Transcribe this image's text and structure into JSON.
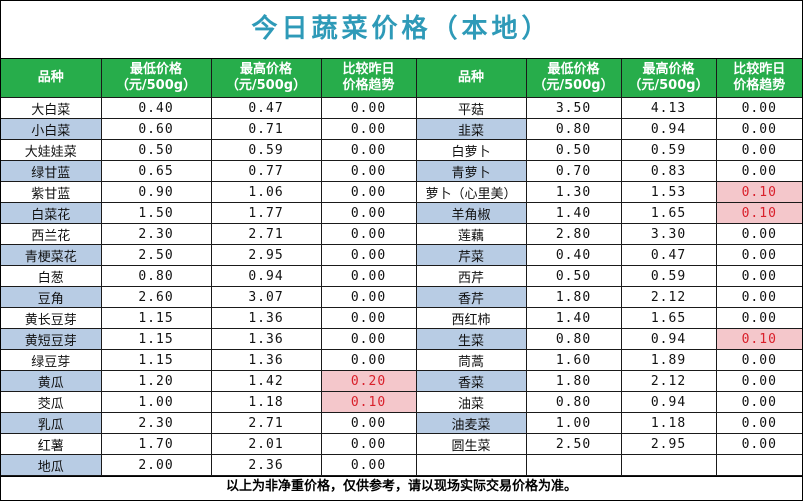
{
  "title": "今日蔬菜价格（本地）",
  "headers": {
    "name": "品种",
    "min_price": "最低价格（元/500g）",
    "min_price_l1": "最低价格",
    "min_price_l2": "（元/500g）",
    "max_price_l1": "最高价格",
    "max_price_l2": "（元/500g）",
    "trend_l1": "比较昨日",
    "trend_l2": "价格趋势"
  },
  "colors": {
    "title": "#2e9ab8",
    "header_bg": "#27ad4b",
    "shade": "#b8cce4",
    "rise_bg": "#f4c7cb",
    "rise_text": "#d9202b"
  },
  "left": [
    {
      "name": "大白菜",
      "min": "0.40",
      "max": "0.47",
      "trend": "0.00",
      "shade": false,
      "rise": false
    },
    {
      "name": "小白菜",
      "min": "0.60",
      "max": "0.71",
      "trend": "0.00",
      "shade": true,
      "rise": false
    },
    {
      "name": "大娃娃菜",
      "min": "0.50",
      "max": "0.59",
      "trend": "0.00",
      "shade": false,
      "rise": false
    },
    {
      "name": "绿甘蓝",
      "min": "0.65",
      "max": "0.77",
      "trend": "0.00",
      "shade": true,
      "rise": false
    },
    {
      "name": "紫甘蓝",
      "min": "0.90",
      "max": "1.06",
      "trend": "0.00",
      "shade": false,
      "rise": false
    },
    {
      "name": "白菜花",
      "min": "1.50",
      "max": "1.77",
      "trend": "0.00",
      "shade": true,
      "rise": false
    },
    {
      "name": "西兰花",
      "min": "2.30",
      "max": "2.71",
      "trend": "0.00",
      "shade": false,
      "rise": false
    },
    {
      "name": "青梗菜花",
      "min": "2.50",
      "max": "2.95",
      "trend": "0.00",
      "shade": true,
      "rise": false
    },
    {
      "name": "白葱",
      "min": "0.80",
      "max": "0.94",
      "trend": "0.00",
      "shade": false,
      "rise": false
    },
    {
      "name": "豆角",
      "min": "2.60",
      "max": "3.07",
      "trend": "0.00",
      "shade": true,
      "rise": false
    },
    {
      "name": "黄长豆芽",
      "min": "1.15",
      "max": "1.36",
      "trend": "0.00",
      "shade": false,
      "rise": false
    },
    {
      "name": "黄短豆芽",
      "min": "1.15",
      "max": "1.36",
      "trend": "0.00",
      "shade": true,
      "rise": false
    },
    {
      "name": "绿豆芽",
      "min": "1.15",
      "max": "1.36",
      "trend": "0.00",
      "shade": false,
      "rise": false
    },
    {
      "name": "黄瓜",
      "min": "1.20",
      "max": "1.42",
      "trend": "0.20",
      "shade": true,
      "rise": true
    },
    {
      "name": "茭瓜",
      "min": "1.00",
      "max": "1.18",
      "trend": "0.10",
      "shade": false,
      "rise": true
    },
    {
      "name": "乳瓜",
      "min": "2.30",
      "max": "2.71",
      "trend": "0.00",
      "shade": true,
      "rise": false
    },
    {
      "name": "红薯",
      "min": "1.70",
      "max": "2.01",
      "trend": "0.00",
      "shade": false,
      "rise": false
    },
    {
      "name": "地瓜",
      "min": "2.00",
      "max": "2.36",
      "trend": "0.00",
      "shade": true,
      "rise": false
    }
  ],
  "right": [
    {
      "name": "平菇",
      "min": "3.50",
      "max": "4.13",
      "trend": "0.00",
      "shade": false,
      "rise": false
    },
    {
      "name": "韭菜",
      "min": "0.80",
      "max": "0.94",
      "trend": "0.00",
      "shade": true,
      "rise": false
    },
    {
      "name": "白萝卜",
      "min": "0.50",
      "max": "0.59",
      "trend": "0.00",
      "shade": false,
      "rise": false
    },
    {
      "name": "青萝卜",
      "min": "0.70",
      "max": "0.83",
      "trend": "0.00",
      "shade": true,
      "rise": false
    },
    {
      "name": "萝卜（心里美）",
      "min": "1.30",
      "max": "1.53",
      "trend": "0.10",
      "shade": false,
      "rise": true
    },
    {
      "name": "羊角椒",
      "min": "1.40",
      "max": "1.65",
      "trend": "0.10",
      "shade": true,
      "rise": true
    },
    {
      "name": "莲藕",
      "min": "2.80",
      "max": "3.30",
      "trend": "0.00",
      "shade": false,
      "rise": false
    },
    {
      "name": "芹菜",
      "min": "0.40",
      "max": "0.47",
      "trend": "0.00",
      "shade": true,
      "rise": false
    },
    {
      "name": "西芹",
      "min": "0.50",
      "max": "0.59",
      "trend": "0.00",
      "shade": false,
      "rise": false
    },
    {
      "name": "香芹",
      "min": "1.80",
      "max": "2.12",
      "trend": "0.00",
      "shade": true,
      "rise": false
    },
    {
      "name": "西红柿",
      "min": "1.40",
      "max": "1.65",
      "trend": "0.00",
      "shade": false,
      "rise": false
    },
    {
      "name": "生菜",
      "min": "0.80",
      "max": "0.94",
      "trend": "0.10",
      "shade": true,
      "rise": true
    },
    {
      "name": "茼蒿",
      "min": "1.60",
      "max": "1.89",
      "trend": "0.00",
      "shade": false,
      "rise": false
    },
    {
      "name": "香菜",
      "min": "1.80",
      "max": "2.12",
      "trend": "0.00",
      "shade": true,
      "rise": false
    },
    {
      "name": "油菜",
      "min": "0.80",
      "max": "0.94",
      "trend": "0.00",
      "shade": false,
      "rise": false
    },
    {
      "name": "油麦菜",
      "min": "1.00",
      "max": "1.18",
      "trend": "0.00",
      "shade": true,
      "rise": false
    },
    {
      "name": "圆生菜",
      "min": "2.50",
      "max": "2.95",
      "trend": "0.00",
      "shade": false,
      "rise": false
    },
    {
      "name": "",
      "min": "",
      "max": "",
      "trend": "",
      "shade": false,
      "rise": false
    }
  ],
  "footer": "以上为非净重价格，仅供参考，请以现场实际交易价格为准。"
}
